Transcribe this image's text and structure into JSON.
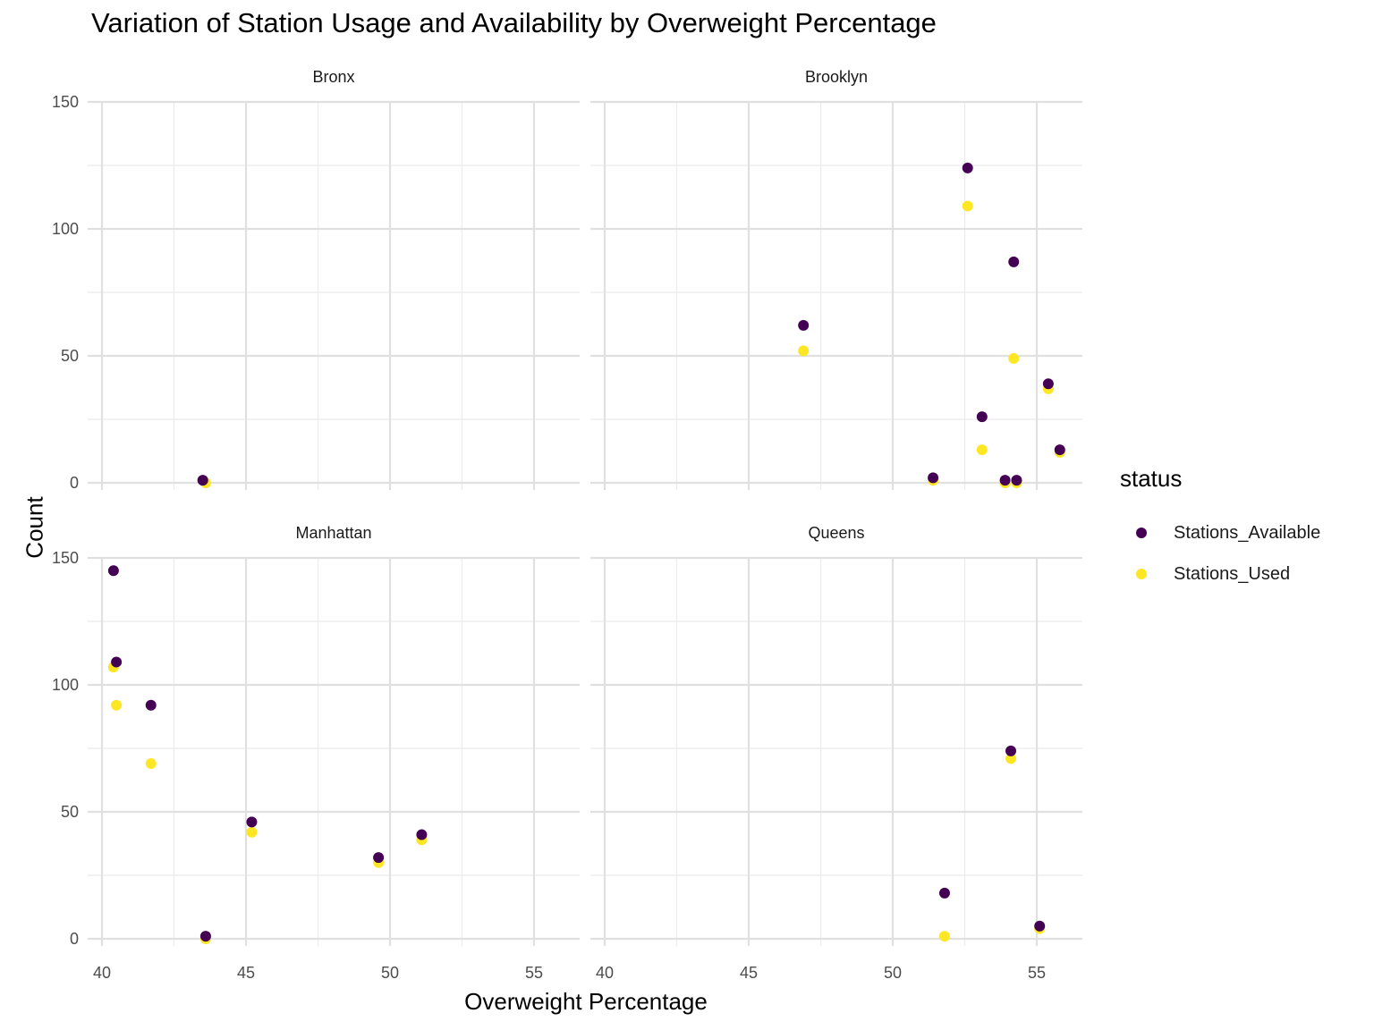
{
  "chart_data": {
    "type": "scatter",
    "title": "Variation of Station Usage and Availability by Overweight Percentage",
    "xlabel": "Overweight Percentage",
    "ylabel": "Count",
    "xlim": [
      40,
      55.5
    ],
    "ylim": [
      0,
      150
    ],
    "x_ticks": [
      40,
      45,
      50,
      55
    ],
    "y_ticks": [
      0,
      50,
      100,
      150
    ],
    "grid": true,
    "legend": {
      "title": "status",
      "placement": "right",
      "entries": [
        {
          "name": "Stations_Available",
          "color": "#440154"
        },
        {
          "name": "Stations_Used",
          "color": "#FDE725"
        }
      ]
    },
    "panels": [
      {
        "name": "Bronx",
        "series": [
          {
            "name": "Stations_Used",
            "points": [
              [
                43.6,
                0
              ]
            ]
          },
          {
            "name": "Stations_Available",
            "points": [
              [
                43.5,
                1
              ]
            ]
          }
        ]
      },
      {
        "name": "Brooklyn",
        "series": [
          {
            "name": "Stations_Used",
            "points": [
              [
                46.9,
                52
              ],
              [
                52.6,
                109
              ],
              [
                54.2,
                49
              ],
              [
                55.4,
                37
              ],
              [
                53.1,
                13
              ],
              [
                55.8,
                12
              ],
              [
                51.4,
                1
              ],
              [
                53.9,
                0
              ],
              [
                54.3,
                0
              ]
            ]
          },
          {
            "name": "Stations_Available",
            "points": [
              [
                46.9,
                62
              ],
              [
                52.6,
                124
              ],
              [
                54.2,
                87
              ],
              [
                55.4,
                39
              ],
              [
                53.1,
                26
              ],
              [
                55.8,
                13
              ],
              [
                51.4,
                2
              ],
              [
                53.9,
                1
              ],
              [
                54.3,
                1
              ]
            ]
          }
        ]
      },
      {
        "name": "Manhattan",
        "series": [
          {
            "name": "Stations_Used",
            "points": [
              [
                40.4,
                107
              ],
              [
                40.5,
                92
              ],
              [
                41.7,
                69
              ],
              [
                45.2,
                42
              ],
              [
                49.6,
                30
              ],
              [
                51.1,
                39
              ],
              [
                43.6,
                0
              ]
            ]
          },
          {
            "name": "Stations_Available",
            "points": [
              [
                40.4,
                145
              ],
              [
                40.5,
                109
              ],
              [
                41.7,
                92
              ],
              [
                45.2,
                46
              ],
              [
                49.6,
                32
              ],
              [
                51.1,
                41
              ],
              [
                43.6,
                1
              ]
            ]
          }
        ]
      },
      {
        "name": "Queens",
        "series": [
          {
            "name": "Stations_Used",
            "points": [
              [
                51.8,
                1
              ],
              [
                54.1,
                71
              ],
              [
                55.1,
                4
              ]
            ]
          },
          {
            "name": "Stations_Available",
            "points": [
              [
                51.8,
                18
              ],
              [
                54.1,
                74
              ],
              [
                55.1,
                5
              ]
            ]
          }
        ]
      }
    ]
  }
}
